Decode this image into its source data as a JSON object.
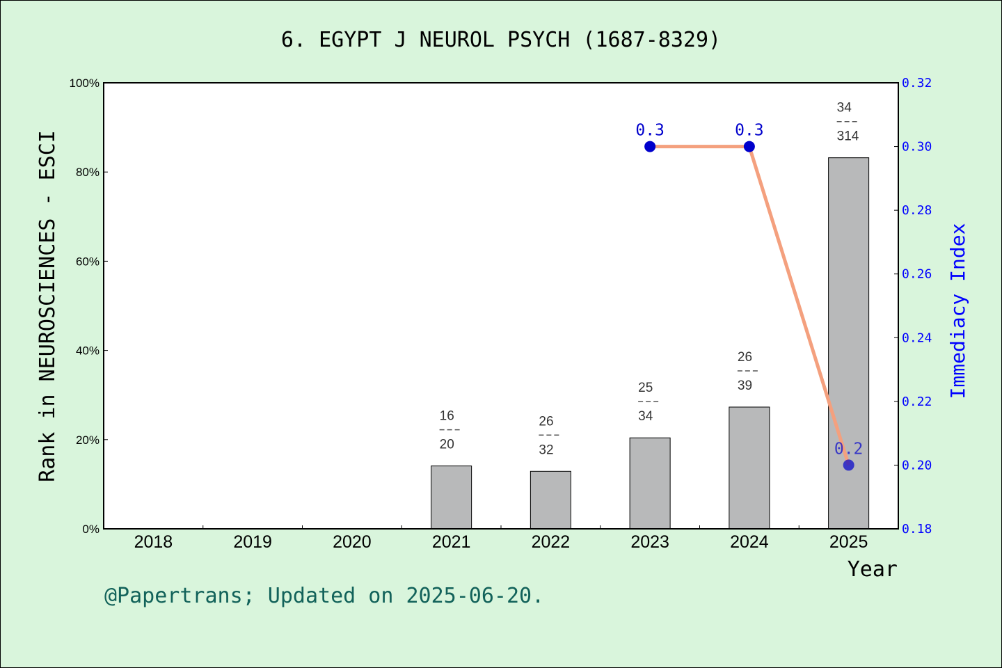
{
  "chart_data": {
    "type": "bar",
    "title": "6. EGYPT J NEUROL PSYCH (1687-8329)",
    "xlabel": "Year",
    "ylabel": "Rank in NEUROSCIENCES - ESCI",
    "y2label": "Immediacy Index",
    "categories": [
      "2018",
      "2019",
      "2020",
      "2021",
      "2022",
      "2023",
      "2024",
      "2025"
    ],
    "ylim": [
      0,
      100
    ],
    "y_ticks": [
      "0%",
      "20%",
      "40%",
      "60%",
      "80%",
      "100%"
    ],
    "y2lim": [
      0.18,
      0.32
    ],
    "y2_ticks": [
      "0.18",
      "0.20",
      "0.22",
      "0.24",
      "0.26",
      "0.28",
      "0.30",
      "0.32"
    ],
    "bars": [
      {
        "year": "2021",
        "rank": "16",
        "total": "20",
        "percent": 14.1
      },
      {
        "year": "2022",
        "rank": "26",
        "total": "32",
        "percent": 12.9
      },
      {
        "year": "2023",
        "rank": "25",
        "total": "34",
        "percent": 20.4
      },
      {
        "year": "2024",
        "rank": "26",
        "total": "39",
        "percent": 27.3
      },
      {
        "year": "2025",
        "rank": "34",
        "total": "314",
        "percent": 83.2
      }
    ],
    "line": {
      "name": "Immediacy Index",
      "points": [
        {
          "year": "2023",
          "value": 0.3,
          "label": "0.3"
        },
        {
          "year": "2024",
          "value": 0.3,
          "label": "0.3"
        },
        {
          "year": "2025",
          "value": 0.2,
          "label": "0.2"
        }
      ]
    },
    "bar_color": "#b8b9ba",
    "line_color": "#f4a07e",
    "marker_color": "#0000cc",
    "right_axis_color": "#0000ff",
    "background": "#d9f5dc",
    "plot_background": "#ffffff",
    "grid": false
  },
  "footer": "@Papertrans; Updated on 2025-06-20."
}
